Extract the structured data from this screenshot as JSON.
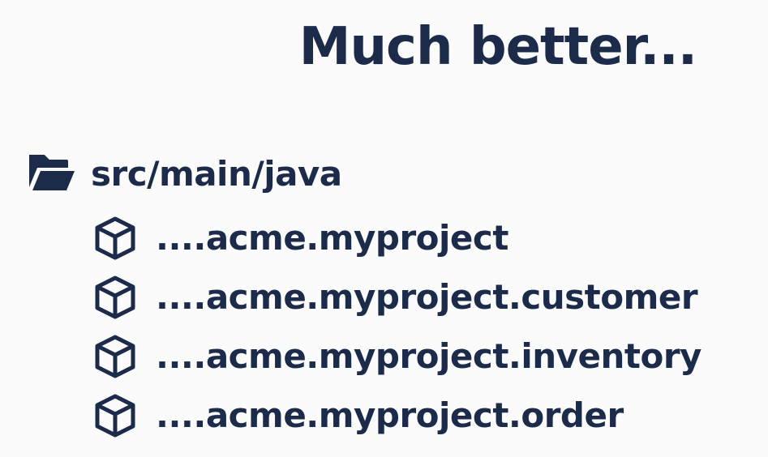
{
  "title": "Much better...",
  "tree": {
    "root": {
      "label": "src/main/java",
      "icon": "folder-open-icon"
    },
    "packages": [
      {
        "label": "....acme.myproject",
        "icon": "package-cube-icon"
      },
      {
        "label": "....acme.myproject.customer",
        "icon": "package-cube-icon"
      },
      {
        "label": "....acme.myproject.inventory",
        "icon": "package-cube-icon"
      },
      {
        "label": "....acme.myproject.order",
        "icon": "package-cube-icon"
      }
    ]
  },
  "colors": {
    "text": "#1c2b4a",
    "background": "#fbfbfb"
  }
}
